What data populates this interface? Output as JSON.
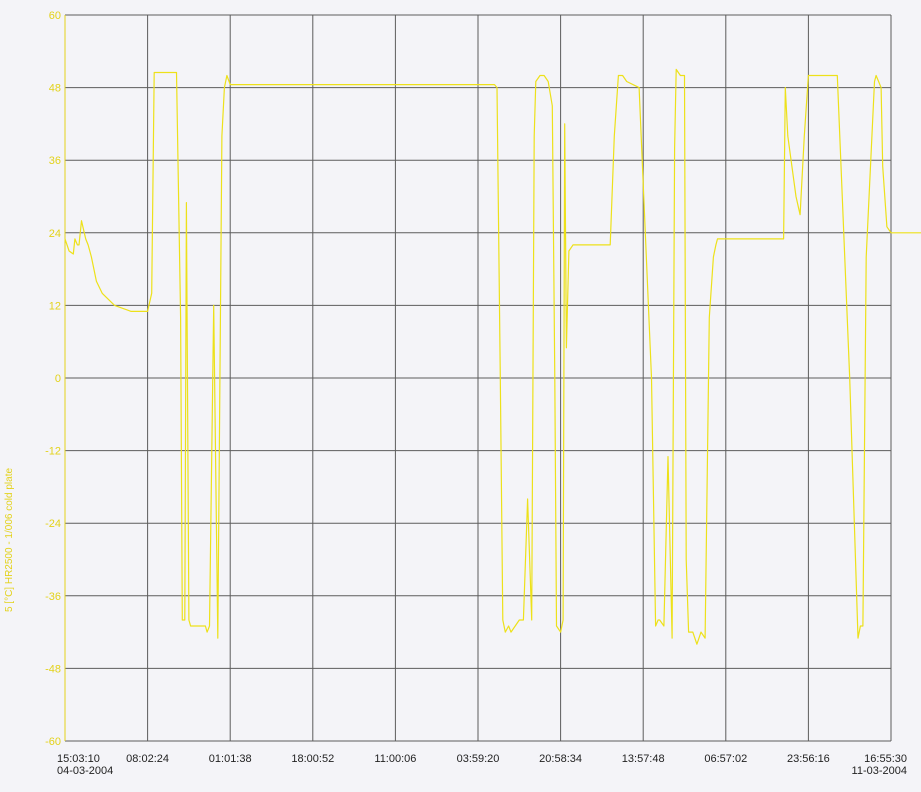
{
  "chart_data": {
    "type": "line",
    "ylabel": "5 [°C] HR2500 - 1/006 cold plate",
    "ylim": [
      -60,
      60
    ],
    "yticks": [
      60,
      48,
      36,
      24,
      12,
      0,
      -12,
      -24,
      -36,
      -48,
      -60
    ],
    "x_time_range": [
      "2004-03-04 15:03:10",
      "2004-03-11 16:55:30"
    ],
    "x_ticks": [
      {
        "time": "15:03:10",
        "date": "04-03-2004"
      },
      {
        "time": "08:02:24",
        "date": ""
      },
      {
        "time": "01:01:38",
        "date": ""
      },
      {
        "time": "18:00:52",
        "date": ""
      },
      {
        "time": "11:00:06",
        "date": ""
      },
      {
        "time": "03:59:20",
        "date": ""
      },
      {
        "time": "20:58:34",
        "date": ""
      },
      {
        "time": "13:57:48",
        "date": ""
      },
      {
        "time": "06:57:02",
        "date": ""
      },
      {
        "time": "23:56:16",
        "date": ""
      },
      {
        "time": "16:55:30",
        "date": "11-03-2004"
      }
    ],
    "grid": true,
    "colors": {
      "series": "#ede11a",
      "axis_text": "#e3d21a",
      "tick_text": "#222222",
      "grid": "#5c5c5c",
      "background": "#f4f4f8"
    },
    "series": [
      {
        "x": [
          0.0,
          0.05,
          0.1,
          0.12,
          0.15,
          0.17,
          0.2,
          0.25,
          0.28,
          0.3,
          0.32,
          0.35,
          0.38,
          0.45,
          0.6,
          0.8,
          1.0,
          1.05,
          1.08,
          1.1,
          1.15,
          1.2,
          1.25,
          1.3,
          1.35,
          1.4,
          1.42,
          1.45,
          1.47,
          1.5,
          1.52,
          1.55,
          1.57,
          1.6,
          1.62,
          1.65,
          1.7,
          1.72,
          1.75,
          1.8,
          1.85,
          1.9,
          1.93,
          1.96,
          2.0,
          2.05,
          2.1,
          2.2,
          2.5,
          2.8,
          3.1,
          3.4,
          3.7,
          4.0,
          4.3,
          4.6,
          4.8,
          5.2,
          5.23,
          5.27,
          5.3,
          5.33,
          5.37,
          5.4,
          5.45,
          5.5,
          5.55,
          5.6,
          5.65,
          5.68,
          5.7,
          5.75,
          5.8,
          5.85,
          5.9,
          5.93,
          5.95,
          6.0,
          6.03,
          6.05,
          6.07,
          6.1,
          6.15,
          6.25,
          6.35,
          6.5,
          6.6,
          6.65,
          6.7,
          6.75,
          6.8,
          6.95,
          7.1,
          7.15,
          7.18,
          7.2,
          7.25,
          7.3,
          7.35,
          7.38,
          7.4,
          7.45,
          7.5,
          7.52,
          7.55,
          7.6,
          7.65,
          7.7,
          7.75,
          7.8,
          7.85,
          7.88,
          7.9,
          8.0,
          8.2,
          8.45,
          8.6,
          8.7,
          8.72,
          8.75,
          8.8,
          8.85,
          8.9,
          8.95,
          9.0,
          9.05,
          9.1,
          9.2,
          9.35,
          9.5,
          9.6,
          9.63,
          9.66,
          9.7,
          9.8,
          9.82,
          9.85,
          9.88,
          9.9,
          9.95,
          10.0,
          10.05,
          10.08,
          10.1,
          10.15,
          10.2,
          10.25,
          10.3,
          10.5,
          10.8,
          11.0,
          11.05,
          11.1,
          11.2,
          11.3,
          11.4,
          11.45,
          11.5,
          11.55,
          11.6,
          11.65
        ],
        "values": [
          23,
          21,
          20.5,
          23,
          22,
          22,
          26,
          23,
          22,
          21,
          20,
          18,
          16,
          14,
          12,
          11,
          11,
          14,
          50.5,
          50.5,
          50.5,
          50.5,
          50.5,
          50.5,
          50.5,
          10,
          -40,
          -40,
          29,
          -40,
          -41,
          -41,
          -41,
          -41,
          -41,
          -41,
          -41,
          -42,
          -41,
          12,
          -43,
          40,
          48,
          50,
          48.5,
          48.5,
          48.5,
          48.5,
          48.5,
          48.5,
          48.5,
          48.5,
          48.5,
          48.5,
          48.5,
          48.5,
          48.5,
          48.5,
          48,
          0,
          -40,
          -42,
          -41,
          -42,
          -41,
          -40,
          -40,
          -20,
          -40,
          40,
          49,
          50,
          50,
          49,
          45,
          0,
          -41,
          -42,
          -40,
          42,
          5,
          21,
          22,
          22,
          22,
          22,
          22,
          40,
          50,
          50,
          49,
          48,
          0,
          -41,
          -40,
          -40,
          -41,
          -13,
          -43,
          38,
          51,
          50,
          50,
          -30,
          -42,
          -42,
          -44,
          -42,
          -43,
          10,
          20,
          22,
          23,
          23,
          23,
          23,
          23,
          23,
          48,
          40,
          35,
          30,
          27,
          40,
          50,
          50,
          50,
          50,
          50,
          0,
          -43,
          -41,
          -41,
          20,
          49,
          50,
          49,
          48,
          35,
          25,
          24,
          24,
          24,
          24,
          24,
          24,
          24,
          24,
          24,
          24,
          0,
          -41,
          -42,
          -42,
          -43,
          -43,
          47,
          35,
          33,
          28,
          26
        ]
      }
    ]
  }
}
